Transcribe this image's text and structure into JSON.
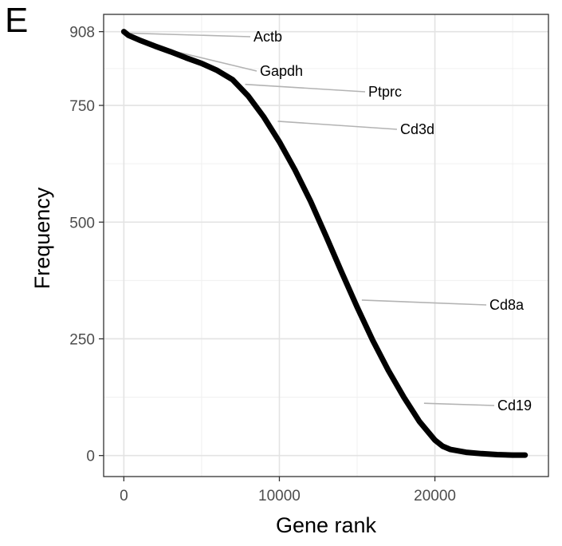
{
  "panel_label": "E",
  "chart_data": {
    "type": "line",
    "title": "",
    "xlabel": "Gene rank",
    "ylabel": "Frequency",
    "xlim": [
      -1300,
      27300
    ],
    "ylim": [
      -45,
      945
    ],
    "x_ticks": [
      0,
      10000,
      20000
    ],
    "x_tick_labels": [
      "0",
      "10000",
      "20000"
    ],
    "y_ticks": [
      0,
      250,
      500,
      750,
      908
    ],
    "y_tick_labels": [
      "0",
      "250",
      "500",
      "750",
      "908"
    ],
    "grid": true,
    "series": [
      {
        "x": [
          0,
          300,
          1000,
          2000,
          3000,
          4000,
          5000,
          6000,
          7000,
          8000,
          9000,
          10000,
          11000,
          12000,
          13000,
          14000,
          15000,
          16000,
          17000,
          18000,
          19000,
          20000,
          20500,
          21000,
          22000,
          23000,
          24000,
          25000,
          25800
        ],
        "y": [
          908,
          900,
          890,
          877,
          865,
          852,
          840,
          825,
          805,
          770,
          725,
          672,
          612,
          545,
          470,
          393,
          318,
          247,
          183,
          125,
          73,
          33,
          20,
          13,
          7,
          4,
          2,
          1,
          1
        ],
        "color": "#000000"
      }
    ],
    "annotations": [
      {
        "label": "Actb",
        "x": 150,
        "y": 905
      },
      {
        "label": "Gapdh",
        "x": 1500,
        "y": 880
      },
      {
        "label": "Ptprc",
        "x": 7800,
        "y": 795
      },
      {
        "label": "Cd3d",
        "x": 9900,
        "y": 716
      },
      {
        "label": "Cd8a",
        "x": 15300,
        "y": 333
      },
      {
        "label": "Cd19",
        "x": 19300,
        "y": 112
      }
    ]
  }
}
